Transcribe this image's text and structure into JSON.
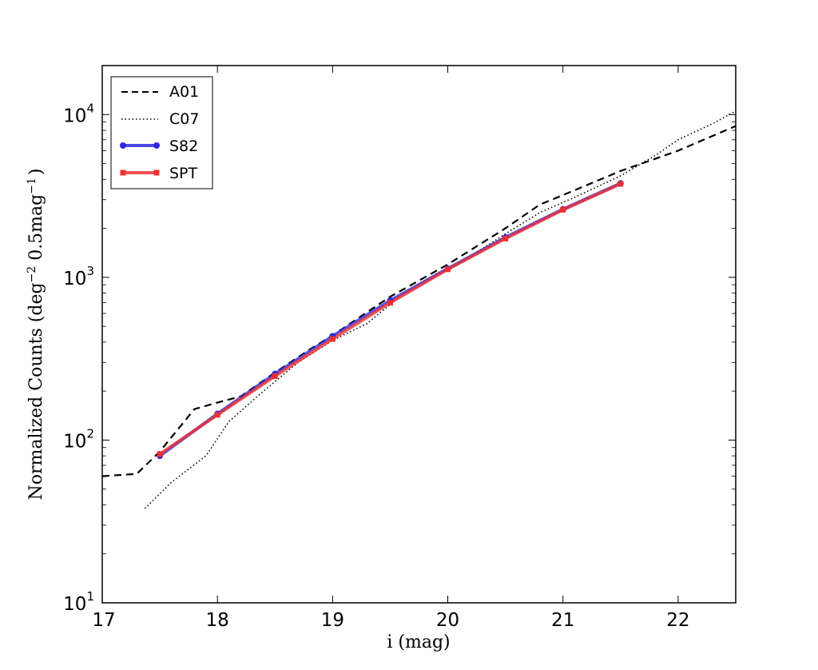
{
  "chart_data": {
    "type": "line",
    "title": "",
    "xlabel": "i (mag)",
    "ylabel_main": "Normalized Counts (deg",
    "ylabel_sup1": "−2",
    "ylabel_mid": " 0.5mag",
    "ylabel_sup2": "−1",
    "ylabel_end": ")",
    "xlim": [
      17,
      22.5
    ],
    "ylim": [
      10,
      20000
    ],
    "yscale": "log",
    "grid": false,
    "legend_position": "top-left",
    "x_ticks": [
      17,
      18,
      19,
      20,
      21,
      22
    ],
    "x_tick_labels": [
      "17",
      "18",
      "19",
      "20",
      "21",
      "22"
    ],
    "y_ticks": [
      10,
      100,
      1000,
      10000
    ],
    "y_tick_base": "10",
    "y_tick_exponents": [
      "1",
      "2",
      "3",
      "4"
    ],
    "series": [
      {
        "name": "A01",
        "style": "dashed",
        "color": "#000000",
        "x": [
          17.0,
          17.3,
          17.5,
          17.8,
          18.0,
          18.2,
          18.5,
          18.8,
          19.0,
          19.5,
          20.0,
          20.5,
          20.8,
          21.0,
          21.5,
          22.0,
          22.5
        ],
        "y": [
          60,
          62,
          85,
          155,
          170,
          185,
          260,
          360,
          440,
          760,
          1200,
          2000,
          2800,
          3200,
          4500,
          6000,
          8500
        ]
      },
      {
        "name": "C07",
        "style": "dotted",
        "color": "#000000",
        "x": [
          17.37,
          17.6,
          17.9,
          18.1,
          18.4,
          18.7,
          19.0,
          19.3,
          19.6,
          19.9,
          20.2,
          20.5,
          20.8,
          21.1,
          21.5,
          21.8,
          22.0,
          22.3,
          22.5
        ],
        "y": [
          38,
          55,
          80,
          130,
          200,
          300,
          410,
          520,
          780,
          1050,
          1350,
          1850,
          2500,
          3100,
          4200,
          5600,
          7000,
          8800,
          10500
        ]
      },
      {
        "name": "S82",
        "style": "solid-circle",
        "color": "#2a2ae0",
        "x": [
          17.5,
          18.0,
          18.5,
          19.0,
          19.5,
          20.0,
          20.5,
          21.0,
          21.5
        ],
        "y": [
          80,
          145,
          255,
          435,
          720,
          1130,
          1760,
          2620,
          3780
        ]
      },
      {
        "name": "SPT",
        "style": "solid-square",
        "color": "#f03030",
        "x": [
          17.5,
          18.0,
          18.5,
          19.0,
          19.5,
          20.0,
          20.5,
          21.0,
          21.5
        ],
        "y": [
          82,
          143,
          247,
          418,
          698,
          1120,
          1730,
          2600,
          3750
        ]
      }
    ]
  }
}
